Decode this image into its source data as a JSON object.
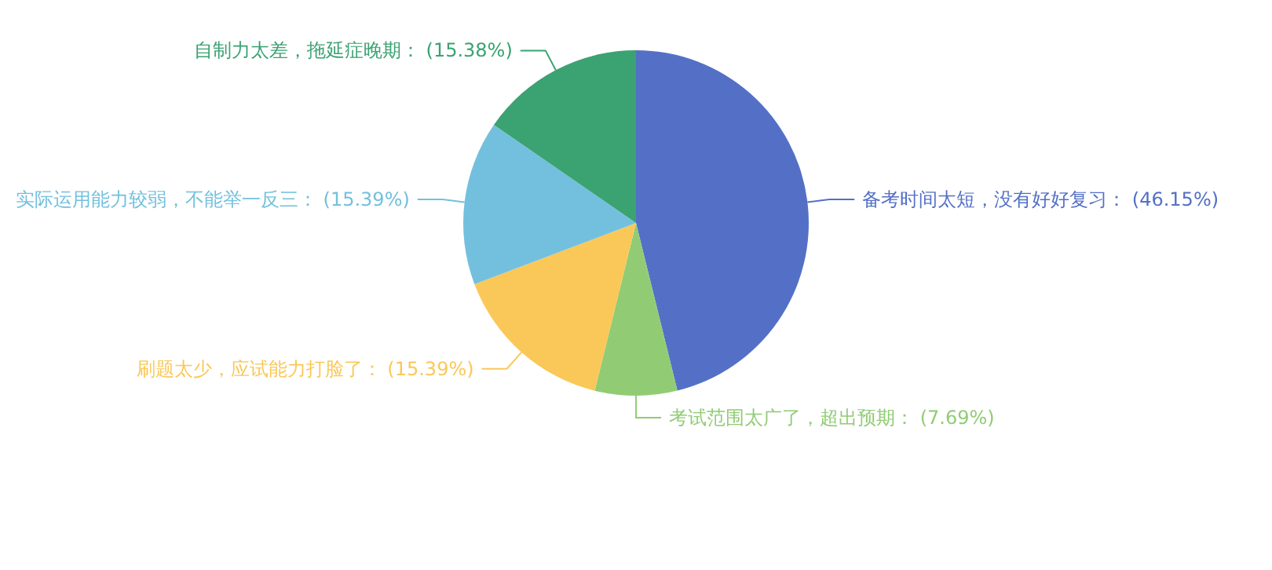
{
  "chart_data": {
    "type": "pie",
    "categories": [
      "备考时间太短，没有好好复习",
      "考试范围太广了，超出预期",
      "刷题太少，应试能力打脸了",
      "实际运用能力较弱，不能举一反三",
      "自制力太差，拖延症晚期"
    ],
    "values": [
      46.15,
      7.69,
      15.39,
      15.39,
      15.38
    ],
    "value_labels": [
      "(46.15%)",
      "(7.69%)",
      "(15.39%)",
      "(15.39%)",
      "(15.38%)"
    ],
    "colors": [
      "#5470c6",
      "#91cc75",
      "#fac858",
      "#73c0de",
      "#3ba272"
    ]
  }
}
